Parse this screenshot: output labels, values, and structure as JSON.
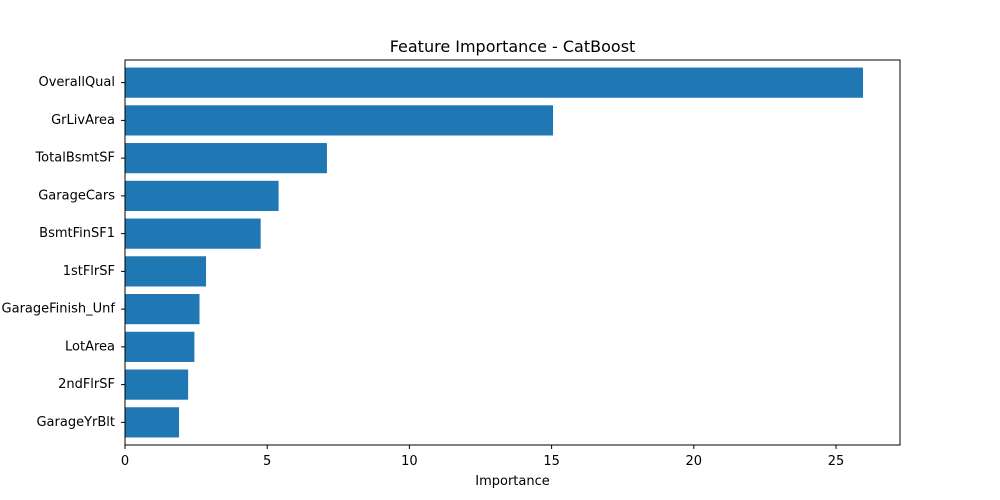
{
  "chart_data": {
    "type": "bar",
    "orientation": "horizontal",
    "title": "Feature Importance - CatBoost",
    "xlabel": "Importance",
    "ylabel": "",
    "categories": [
      "OverallQual",
      "GrLivArea",
      "TotalBsmtSF",
      "GarageCars",
      "BsmtFinSF1",
      "1stFlrSF",
      "GarageFinish_Unf",
      "LotArea",
      "2ndFlrSF",
      "GarageYrBlt"
    ],
    "values": [
      25.95,
      15.05,
      7.1,
      5.4,
      4.77,
      2.85,
      2.62,
      2.44,
      2.22,
      1.9
    ],
    "xlim": [
      0,
      27.25
    ],
    "xticks": [
      0,
      5,
      10,
      15,
      20,
      25
    ],
    "grid": false,
    "bar_color": "#1f77b4"
  }
}
